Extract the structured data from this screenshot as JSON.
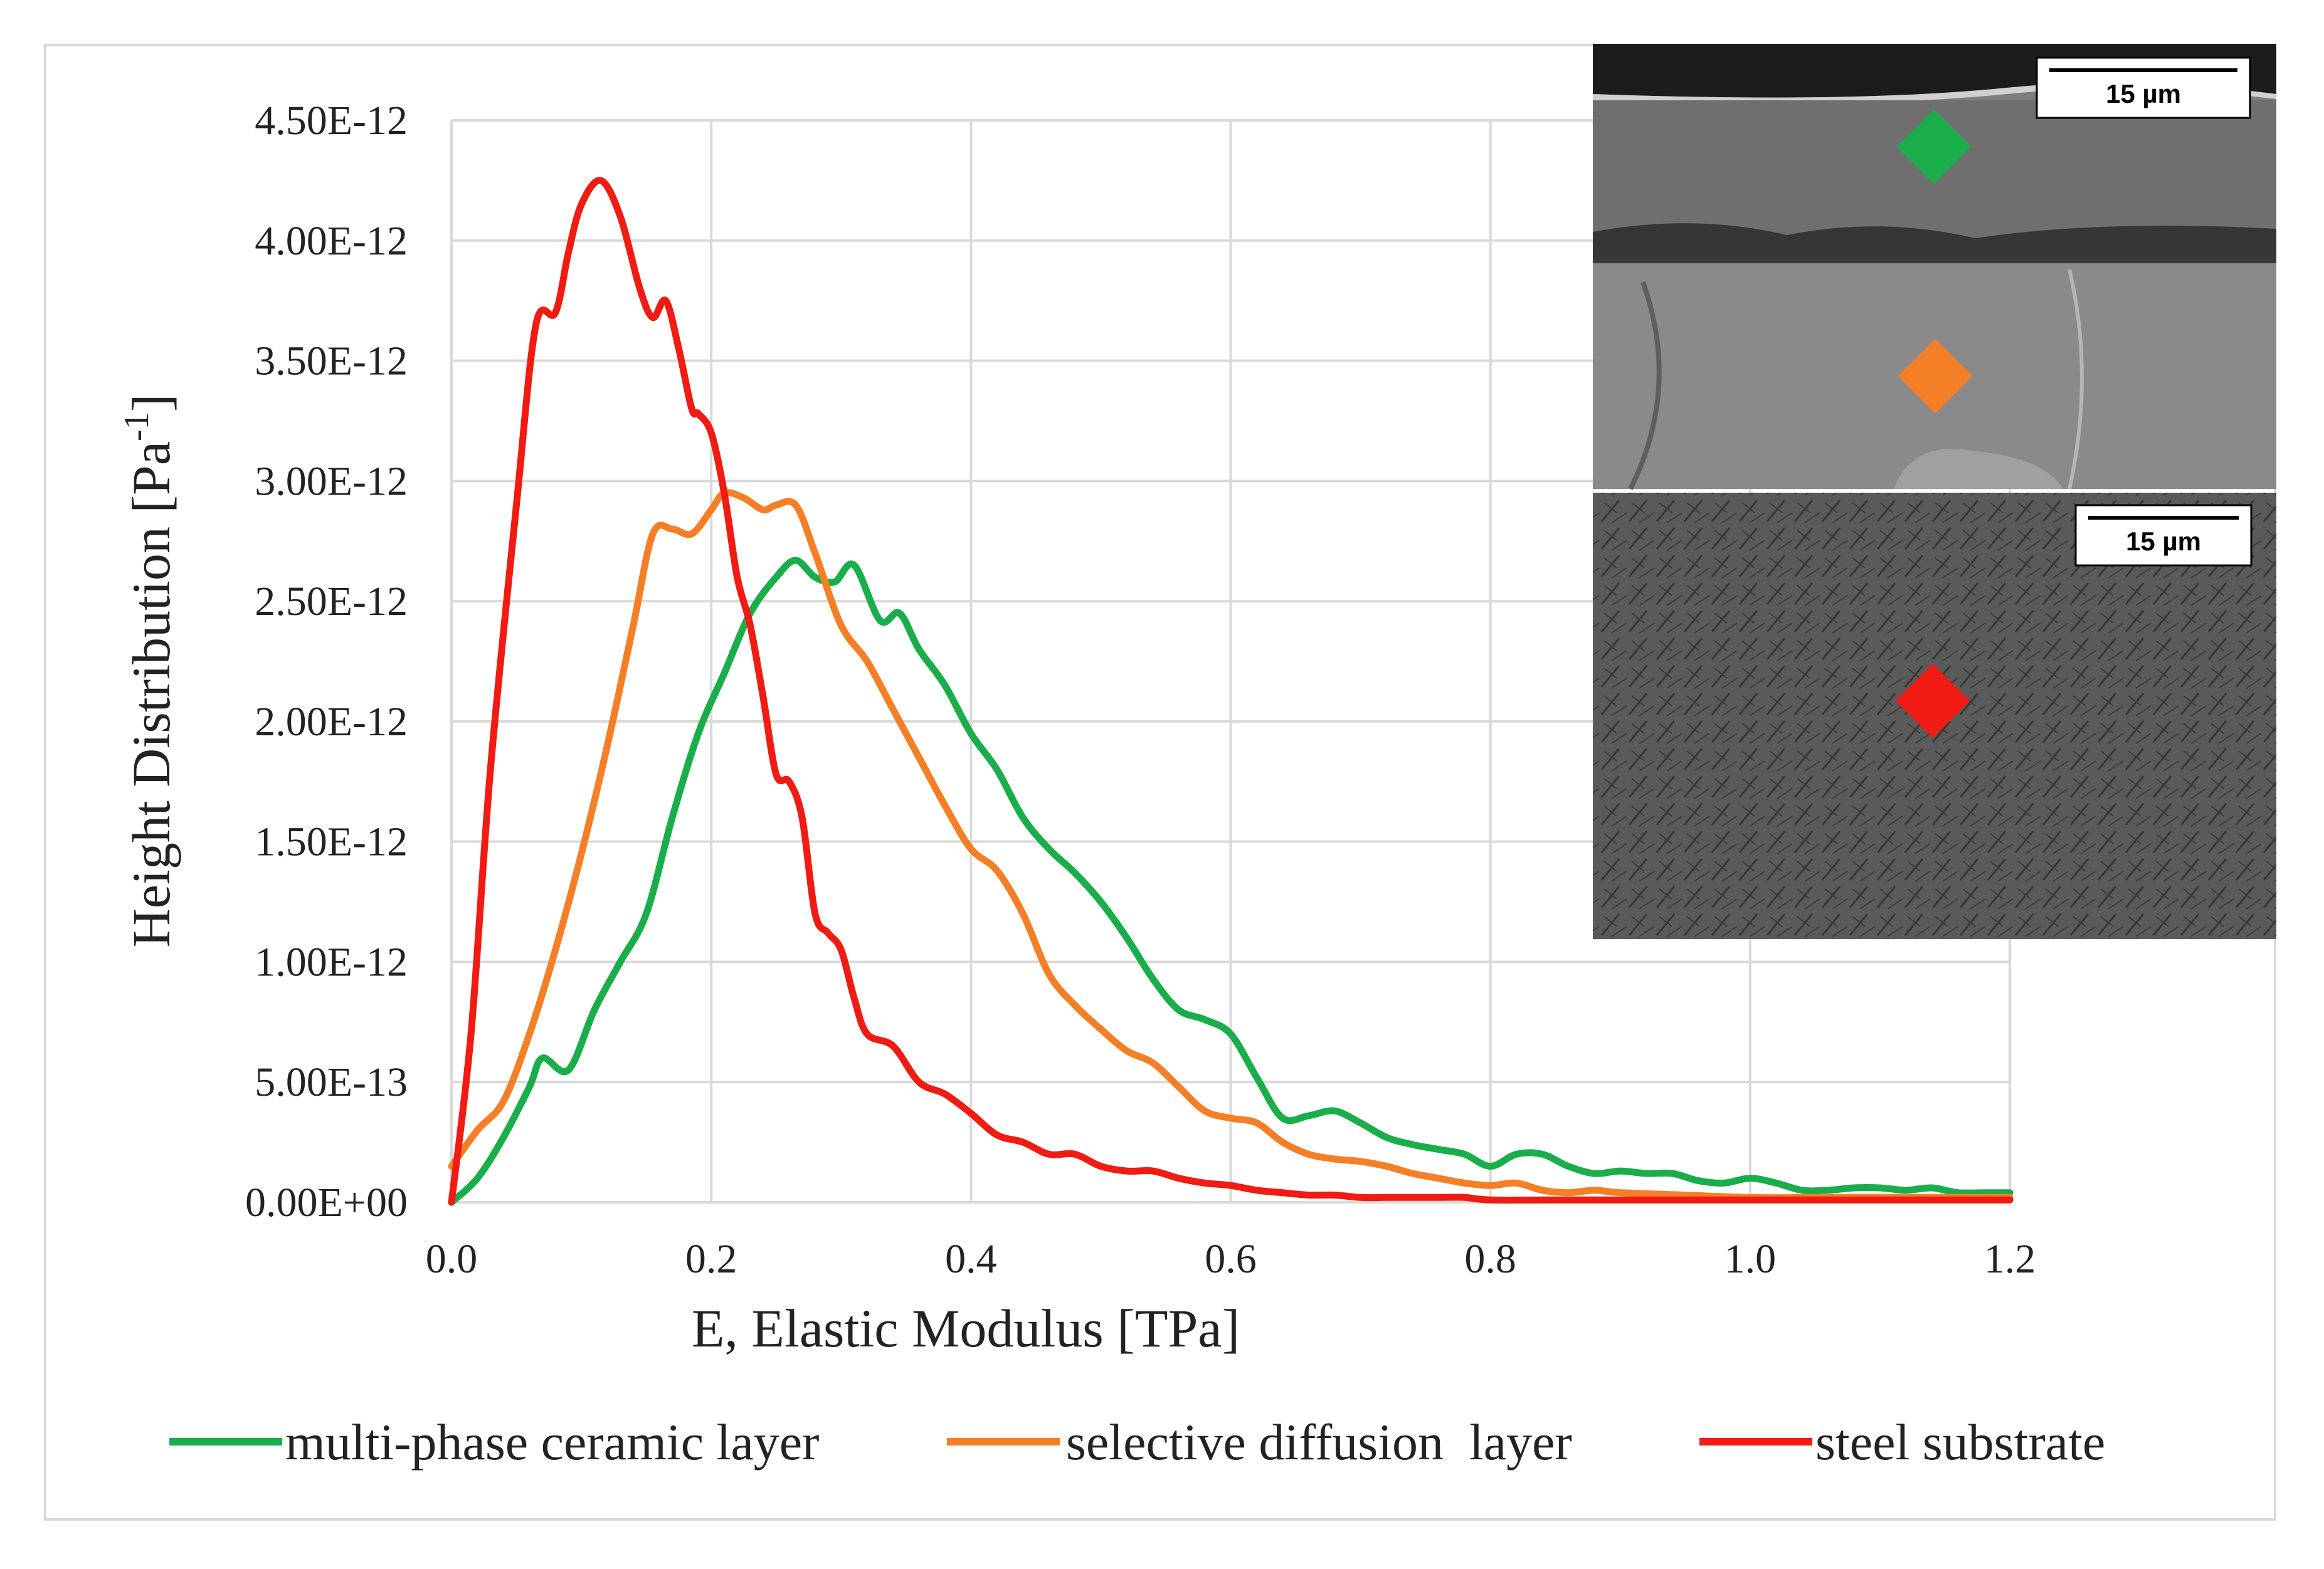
{
  "chart_data": {
    "type": "line",
    "title": "",
    "xlabel": "E, Elastic Modulus [TPa]",
    "ylabel_main": "Height Distribution [Pa",
    "ylabel_sup": "-1",
    "ylabel_close": "]",
    "xlim": [
      0.0,
      1.2
    ],
    "ylim": [
      0.0,
      4.5e-12
    ],
    "x_ticks": [
      0.0,
      0.2,
      0.4,
      0.6,
      0.8,
      1.0,
      1.2
    ],
    "x_tick_labels": [
      "0.0",
      "0.2",
      "0.4",
      "0.6",
      "0.8",
      "1.0",
      "1.2"
    ],
    "y_ticks": [
      0,
      5e-13,
      1e-12,
      1.5e-12,
      2e-12,
      2.5e-12,
      3e-12,
      3.5e-12,
      4e-12,
      4.5e-12
    ],
    "y_tick_labels": [
      "0.00E+00",
      "5.00E-13",
      "1.00E-12",
      "1.50E-12",
      "2.00E-12",
      "2.50E-12",
      "3.00E-12",
      "3.50E-12",
      "4.00E-12",
      "4.50E-12"
    ],
    "grid": true,
    "legend_position": "bottom",
    "series": [
      {
        "name": "multi-phase ceramic layer",
        "color": "#1aae4a",
        "x": [
          0,
          0.02,
          0.04,
          0.06,
          0.07,
          0.09,
          0.11,
          0.13,
          0.15,
          0.17,
          0.19,
          0.21,
          0.23,
          0.25,
          0.265,
          0.28,
          0.295,
          0.31,
          0.33,
          0.345,
          0.36,
          0.38,
          0.4,
          0.42,
          0.44,
          0.46,
          0.48,
          0.5,
          0.52,
          0.54,
          0.56,
          0.58,
          0.6,
          0.62,
          0.64,
          0.66,
          0.68,
          0.7,
          0.72,
          0.74,
          0.76,
          0.78,
          0.8,
          0.82,
          0.84,
          0.86,
          0.88,
          0.9,
          0.92,
          0.94,
          0.96,
          0.98,
          1.0,
          1.02,
          1.04,
          1.06,
          1.08,
          1.1,
          1.12,
          1.14,
          1.16,
          1.18,
          1.2
        ],
        "values": [
          0,
          1e-13,
          2.7e-13,
          4.8e-13,
          6e-13,
          5.5e-13,
          8e-13,
          1e-12,
          1.2e-12,
          1.6e-12,
          1.95e-12,
          2.2e-12,
          2.45e-12,
          2.6e-12,
          2.67e-12,
          2.6e-12,
          2.58e-12,
          2.65e-12,
          2.42e-12,
          2.45e-12,
          2.3e-12,
          2.15e-12,
          1.95e-12,
          1.8e-12,
          1.6e-12,
          1.47e-12,
          1.37e-12,
          1.25e-12,
          1.1e-12,
          9.3e-13,
          8e-13,
          7.6e-13,
          7e-13,
          5.2e-13,
          3.5e-13,
          3.6e-13,
          3.8e-13,
          3.3e-13,
          2.7e-13,
          2.4e-13,
          2.2e-13,
          2e-13,
          1.5e-13,
          2e-13,
          2e-13,
          1.5e-13,
          1.2e-13,
          1.3e-13,
          1.2e-13,
          1.2e-13,
          9e-14,
          8e-14,
          1e-13,
          8e-14,
          5e-14,
          5e-14,
          6e-14,
          6e-14,
          5e-14,
          6e-14,
          4e-14,
          4e-14,
          4e-14
        ]
      },
      {
        "name": "selective diffusion  layer",
        "color": "#f57f27",
        "x": [
          0,
          0.02,
          0.04,
          0.06,
          0.08,
          0.1,
          0.12,
          0.14,
          0.155,
          0.17,
          0.185,
          0.2,
          0.21,
          0.225,
          0.24,
          0.25,
          0.265,
          0.28,
          0.3,
          0.32,
          0.34,
          0.36,
          0.38,
          0.4,
          0.42,
          0.44,
          0.46,
          0.48,
          0.5,
          0.52,
          0.54,
          0.56,
          0.58,
          0.6,
          0.62,
          0.64,
          0.66,
          0.68,
          0.7,
          0.72,
          0.74,
          0.76,
          0.78,
          0.8,
          0.82,
          0.84,
          0.86,
          0.88,
          0.9,
          0.95,
          1.0,
          1.05,
          1.1,
          1.15,
          1.2
        ],
        "values": [
          1.5e-13,
          3e-13,
          4.2e-13,
          7e-13,
          1.05e-12,
          1.45e-12,
          1.9e-12,
          2.4e-12,
          2.78e-12,
          2.8e-12,
          2.78e-12,
          2.88e-12,
          2.95e-12,
          2.93e-12,
          2.88e-12,
          2.9e-12,
          2.9e-12,
          2.7e-12,
          2.4e-12,
          2.25e-12,
          2.05e-12,
          1.85e-12,
          1.65e-12,
          1.47e-12,
          1.38e-12,
          1.2e-12,
          9.5e-13,
          8.2e-13,
          7.2e-13,
          6.3e-13,
          5.8e-13,
          4.8e-13,
          3.8e-13,
          3.5e-13,
          3.3e-13,
          2.5e-13,
          2e-13,
          1.8e-13,
          1.7e-13,
          1.5e-13,
          1.2e-13,
          1e-13,
          8e-14,
          7e-14,
          8e-14,
          5e-14,
          4e-14,
          5e-14,
          4e-14,
          3e-14,
          2e-14,
          2e-14,
          2e-14,
          2e-14,
          2e-14
        ]
      },
      {
        "name": "steel substrate",
        "color": "#f01b12",
        "x": [
          0,
          0.015,
          0.03,
          0.05,
          0.065,
          0.08,
          0.09,
          0.1,
          0.115,
          0.13,
          0.145,
          0.155,
          0.165,
          0.175,
          0.185,
          0.19,
          0.2,
          0.21,
          0.22,
          0.23,
          0.24,
          0.25,
          0.26,
          0.27,
          0.28,
          0.29,
          0.3,
          0.31,
          0.32,
          0.34,
          0.36,
          0.38,
          0.4,
          0.42,
          0.44,
          0.46,
          0.48,
          0.5,
          0.52,
          0.54,
          0.56,
          0.58,
          0.6,
          0.62,
          0.64,
          0.66,
          0.68,
          0.7,
          0.72,
          0.74,
          0.76,
          0.78,
          0.8,
          0.85,
          0.9,
          1.0,
          1.1,
          1.2
        ],
        "values": [
          0,
          7e-13,
          1.8e-12,
          2.9e-12,
          3.65e-12,
          3.7e-12,
          3.95e-12,
          4.15e-12,
          4.25e-12,
          4.1e-12,
          3.8e-12,
          3.68e-12,
          3.75e-12,
          3.55e-12,
          3.3e-12,
          3.28e-12,
          3.2e-12,
          2.95e-12,
          2.6e-12,
          2.4e-12,
          2.1e-12,
          1.78e-12,
          1.75e-12,
          1.6e-12,
          1.2e-12,
          1.12e-12,
          1.05e-12,
          8.5e-13,
          7e-13,
          6.5e-13,
          5e-13,
          4.5e-13,
          3.7e-13,
          2.8e-13,
          2.5e-13,
          2e-13,
          2e-13,
          1.5e-13,
          1.3e-13,
          1.3e-13,
          1e-13,
          8e-14,
          7e-14,
          5e-14,
          4e-14,
          3e-14,
          3e-14,
          2e-14,
          2e-14,
          2e-14,
          2e-14,
          2e-14,
          1e-14,
          1e-14,
          1e-14,
          1e-14,
          1e-14,
          1e-14
        ]
      }
    ]
  },
  "insets": {
    "top": {
      "scale_label": "15 µm",
      "marker_colors": [
        "#1aae4a",
        "#f57f27"
      ]
    },
    "bottom": {
      "scale_label": "15 µm",
      "marker_colors": [
        "#f01b12"
      ]
    }
  }
}
